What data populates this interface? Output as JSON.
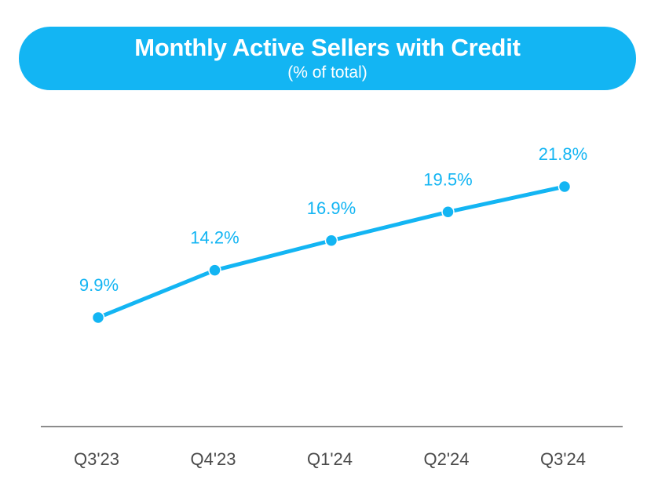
{
  "colors": {
    "accent": "#13b5f3",
    "baseline": "#8c8c8c",
    "tick_text": "#4a4a4a",
    "banner_text": "#ffffff"
  },
  "chart_data": {
    "type": "line",
    "title": "Monthly Active Sellers with Credit",
    "subtitle": "(% of total)",
    "categories": [
      "Q3'23",
      "Q4'23",
      "Q1'24",
      "Q2'24",
      "Q3'24"
    ],
    "series": [
      {
        "values": [
          9.9,
          14.2,
          16.9,
          19.5,
          21.8
        ]
      }
    ],
    "data_labels": [
      "9.9%",
      "14.2%",
      "16.9%",
      "19.5%",
      "21.8%"
    ],
    "xlabel": "",
    "ylabel": "",
    "y_axis_visible": false,
    "grid": false,
    "legend": "none"
  }
}
